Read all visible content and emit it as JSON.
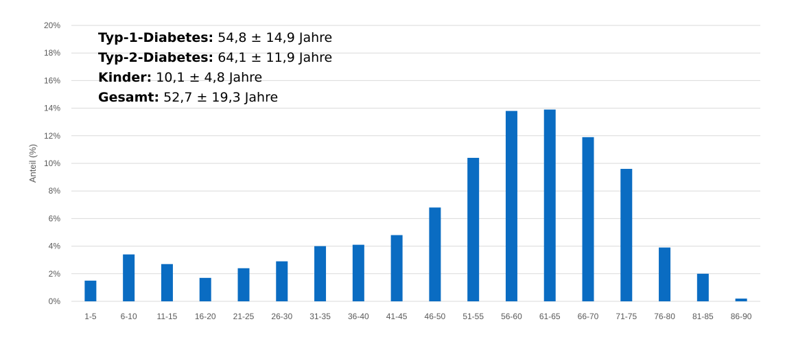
{
  "chart_data": {
    "type": "bar",
    "ylabel": "Anteil (%)",
    "xlabel": "",
    "ylim": [
      0,
      20
    ],
    "yticks": [
      "0%",
      "2%",
      "4%",
      "6%",
      "8%",
      "10%",
      "12%",
      "14%",
      "16%",
      "18%",
      "20%"
    ],
    "grid": true,
    "categories": [
      "1-5",
      "6-10",
      "11-15",
      "16-20",
      "21-25",
      "26-30",
      "31-35",
      "36-40",
      "41-45",
      "46-50",
      "51-55",
      "56-60",
      "61-65",
      "66-70",
      "71-75",
      "76-80",
      "81-85",
      "86-90"
    ],
    "values": [
      1.5,
      3.4,
      2.7,
      1.7,
      2.4,
      2.9,
      4.0,
      4.1,
      4.8,
      6.8,
      10.4,
      13.8,
      13.9,
      11.9,
      9.6,
      3.9,
      2.0,
      0.2
    ],
    "bar_color": "#0a6cc2",
    "grid_color": "#d9d9d9",
    "annotations": [
      {
        "label": "Typ-1-Diabetes:",
        "value": " 54,8 ± 14,9 Jahre"
      },
      {
        "label": "Typ-2-Diabetes:",
        "value": " 64,1 ± 11,9 Jahre"
      },
      {
        "label": "Kinder:",
        "value": " 10,1 ± 4,8 Jahre"
      },
      {
        "label": "Gesamt:",
        "value": " 52,7 ± 19,3 Jahre"
      }
    ]
  }
}
